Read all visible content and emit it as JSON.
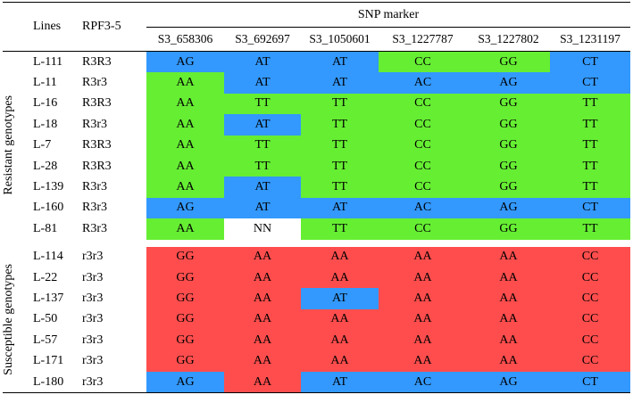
{
  "header": {
    "lines_label": "Lines",
    "rpf_label": "RPF3-5",
    "snp_label": "SNP marker",
    "markers": [
      "S3_658306",
      "S3_692697",
      "S3_1050601",
      "S3_1227787",
      "S3_1227802",
      "S3_1231197"
    ]
  },
  "groups": {
    "resistant_label": "Resistant genotypes",
    "susceptible_label": "Susceptible genotypes"
  },
  "colors": {
    "green": "#66ee33",
    "blue": "#3399ff",
    "red": "#ff4d4d",
    "white": "#ffffff"
  },
  "resistant": [
    {
      "line": "L-111",
      "rpf": "R3R3",
      "calls": [
        "AG",
        "AT",
        "AT",
        "CC",
        "GG",
        "CT"
      ],
      "colors": [
        "blue",
        "blue",
        "blue",
        "green",
        "green",
        "blue"
      ]
    },
    {
      "line": "L-11",
      "rpf": "R3r3",
      "calls": [
        "AA",
        "AT",
        "AT",
        "AC",
        "AG",
        "CT"
      ],
      "colors": [
        "green",
        "blue",
        "blue",
        "blue",
        "blue",
        "blue"
      ]
    },
    {
      "line": "L-16",
      "rpf": "R3R3",
      "calls": [
        "AA",
        "TT",
        "TT",
        "CC",
        "GG",
        "TT"
      ],
      "colors": [
        "green",
        "green",
        "green",
        "green",
        "green",
        "green"
      ]
    },
    {
      "line": "L-18",
      "rpf": "R3r3",
      "calls": [
        "AA",
        "AT",
        "TT",
        "CC",
        "GG",
        "TT"
      ],
      "colors": [
        "green",
        "blue",
        "green",
        "green",
        "green",
        "green"
      ]
    },
    {
      "line": "L-7",
      "rpf": "R3R3",
      "calls": [
        "AA",
        "TT",
        "TT",
        "CC",
        "GG",
        "TT"
      ],
      "colors": [
        "green",
        "green",
        "green",
        "green",
        "green",
        "green"
      ]
    },
    {
      "line": "L-28",
      "rpf": "R3R3",
      "calls": [
        "AA",
        "TT",
        "TT",
        "CC",
        "GG",
        "TT"
      ],
      "colors": [
        "green",
        "green",
        "green",
        "green",
        "green",
        "green"
      ]
    },
    {
      "line": "L-139",
      "rpf": "R3r3",
      "calls": [
        "AA",
        "AT",
        "TT",
        "CC",
        "GG",
        "TT"
      ],
      "colors": [
        "green",
        "blue",
        "green",
        "green",
        "green",
        "green"
      ]
    },
    {
      "line": "L-160",
      "rpf": "R3r3",
      "calls": [
        "AG",
        "AT",
        "AT",
        "AC",
        "AG",
        "CT"
      ],
      "colors": [
        "blue",
        "blue",
        "blue",
        "blue",
        "blue",
        "blue"
      ]
    },
    {
      "line": "L-81",
      "rpf": "R3r3",
      "calls": [
        "AA",
        "NN",
        "TT",
        "CC",
        "GG",
        "TT"
      ],
      "colors": [
        "green",
        "white",
        "green",
        "green",
        "green",
        "green"
      ]
    }
  ],
  "susceptible": [
    {
      "line": "L-114",
      "rpf": "r3r3",
      "calls": [
        "GG",
        "AA",
        "AA",
        "AA",
        "AA",
        "CC"
      ],
      "colors": [
        "red",
        "red",
        "red",
        "red",
        "red",
        "red"
      ]
    },
    {
      "line": "L-22",
      "rpf": "r3r3",
      "calls": [
        "GG",
        "AA",
        "AA",
        "AA",
        "AA",
        "CC"
      ],
      "colors": [
        "red",
        "red",
        "red",
        "red",
        "red",
        "red"
      ]
    },
    {
      "line": "L-137",
      "rpf": "r3r3",
      "calls": [
        "GG",
        "AA",
        "AT",
        "AA",
        "AA",
        "CC"
      ],
      "colors": [
        "red",
        "red",
        "blue",
        "red",
        "red",
        "red"
      ]
    },
    {
      "line": "L-50",
      "rpf": "r3r3",
      "calls": [
        "GG",
        "AA",
        "AA",
        "AA",
        "AA",
        "CC"
      ],
      "colors": [
        "red",
        "red",
        "red",
        "red",
        "red",
        "red"
      ]
    },
    {
      "line": "L-57",
      "rpf": "r3r3",
      "calls": [
        "GG",
        "AA",
        "AA",
        "AA",
        "AA",
        "CC"
      ],
      "colors": [
        "red",
        "red",
        "red",
        "red",
        "red",
        "red"
      ]
    },
    {
      "line": "L-171",
      "rpf": "r3r3",
      "calls": [
        "GG",
        "AA",
        "AA",
        "AA",
        "AA",
        "CC"
      ],
      "colors": [
        "red",
        "red",
        "red",
        "red",
        "red",
        "red"
      ]
    },
    {
      "line": "L-180",
      "rpf": "r3r3",
      "calls": [
        "AG",
        "AA",
        "AT",
        "AC",
        "AG",
        "CT"
      ],
      "colors": [
        "blue",
        "red",
        "blue",
        "blue",
        "blue",
        "blue"
      ]
    }
  ]
}
